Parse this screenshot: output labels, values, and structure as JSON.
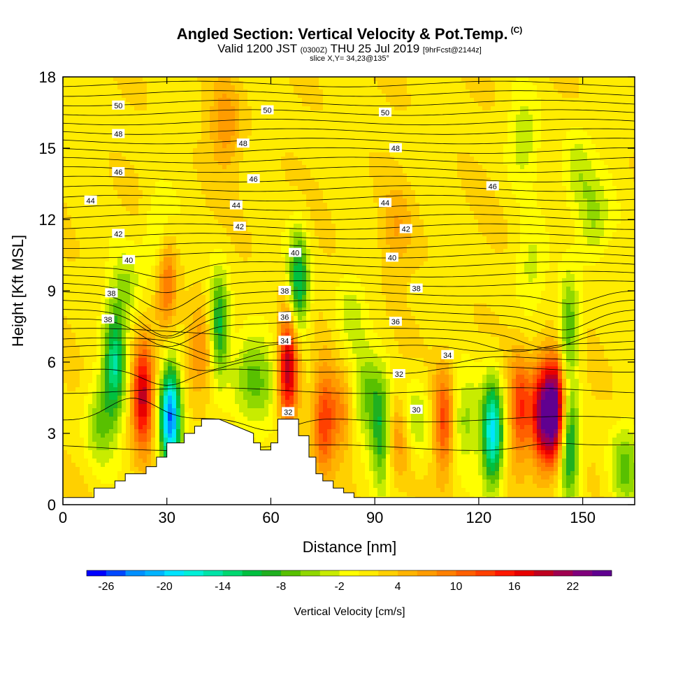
{
  "header": {
    "title": "Angled Section: Vertical Velocity & Pot.Temp.",
    "title_tag": "(C)",
    "valid_prefix": "Valid 1200 JST",
    "valid_zulu": "(0300Z)",
    "valid_date": "THU 25 Jul 2019",
    "valid_fcst": "[9hrFcst@2144z]",
    "slice": "slice X,Y= 34,23@135°"
  },
  "chart_data": {
    "type": "heatmap",
    "title": "Angled Section: Vertical Velocity & Pot.Temp.",
    "xlabel": "Distance [nm]",
    "ylabel": "Height [Kft MSL]",
    "xlim": [
      0,
      165
    ],
    "ylim": [
      0,
      18
    ],
    "x_ticks": [
      0,
      30,
      60,
      90,
      120,
      150
    ],
    "y_ticks": [
      0,
      3,
      6,
      9,
      12,
      15,
      18
    ],
    "colorbar": {
      "label": "Vertical Velocity [cm/s]",
      "tick_labels": [
        "-26",
        "-20",
        "-14",
        "-8",
        "-2",
        "4",
        "10",
        "16",
        "22"
      ],
      "range": [
        -28,
        26
      ],
      "bins": 27,
      "colors": [
        "#0000ff",
        "#0048ff",
        "#0090ff",
        "#00b4ff",
        "#00e4ff",
        "#00f0d8",
        "#00e4a8",
        "#00d870",
        "#00c040",
        "#20b020",
        "#58c000",
        "#90d800",
        "#c8ec00",
        "#ffff00",
        "#ffec00",
        "#ffd000",
        "#ffb400",
        "#ff9c00",
        "#ff8000",
        "#ff6000",
        "#ff4000",
        "#ff1800",
        "#e80000",
        "#c00020",
        "#a00050",
        "#80007c",
        "#600090"
      ]
    },
    "velocity_features": [
      {
        "x": 11,
        "z": 3.5,
        "w": -8
      },
      {
        "x": 15,
        "z": 6.0,
        "w": -14
      },
      {
        "x": 18,
        "z": 9.0,
        "w": -6
      },
      {
        "x": 23,
        "z": 4.5,
        "w": 18
      },
      {
        "x": 31,
        "z": 3.7,
        "w": -26
      },
      {
        "x": 30,
        "z": 9.5,
        "w": 10
      },
      {
        "x": 28,
        "z": 11.2,
        "w": -6
      },
      {
        "x": 40,
        "z": 6.5,
        "w": 8
      },
      {
        "x": 45,
        "z": 7.5,
        "w": -14
      },
      {
        "x": 47,
        "z": 16.0,
        "w": 6
      },
      {
        "x": 53,
        "z": 5.5,
        "w": -7
      },
      {
        "x": 58,
        "z": 5.0,
        "w": -6
      },
      {
        "x": 65,
        "z": 5.8,
        "w": 20
      },
      {
        "x": 68,
        "z": 9.3,
        "w": -14
      },
      {
        "x": 75,
        "z": 3.5,
        "w": 10
      },
      {
        "x": 80,
        "z": 3.8,
        "w": 7
      },
      {
        "x": 87,
        "z": 4.5,
        "w": -8
      },
      {
        "x": 92,
        "z": 3.0,
        "w": -12
      },
      {
        "x": 97,
        "z": 3.0,
        "w": 9
      },
      {
        "x": 101,
        "z": 3.5,
        "w": -8
      },
      {
        "x": 110,
        "z": 3.5,
        "w": 12
      },
      {
        "x": 96,
        "z": 11.5,
        "w": 4
      },
      {
        "x": 116,
        "z": 3.5,
        "w": -6
      },
      {
        "x": 124,
        "z": 3.0,
        "w": -20
      },
      {
        "x": 132,
        "z": 4.0,
        "w": 12
      },
      {
        "x": 138,
        "z": 3.8,
        "w": 18
      },
      {
        "x": 142,
        "z": 4.0,
        "w": 26
      },
      {
        "x": 146,
        "z": 2.5,
        "w": -14
      },
      {
        "x": 146,
        "z": 7.5,
        "w": -10
      },
      {
        "x": 153,
        "z": 12.0,
        "w": -6
      },
      {
        "x": 162,
        "z": 1.5,
        "w": -8
      },
      {
        "x": 133,
        "z": 15.5,
        "w": -5
      },
      {
        "x": 148,
        "z": 14.0,
        "w": -5
      },
      {
        "x": 135,
        "z": 10.0,
        "w": -4
      },
      {
        "x": 83,
        "z": 8.0,
        "w": -4
      }
    ],
    "terrain": {
      "x": [
        0,
        9,
        9,
        15,
        15,
        18,
        18,
        24,
        24,
        27,
        27,
        30,
        30,
        35,
        35,
        38,
        38,
        40,
        40,
        45,
        45,
        50,
        50,
        55,
        55,
        57,
        57,
        60,
        60,
        62,
        62,
        65,
        65,
        68,
        68,
        71,
        71,
        73,
        73,
        75,
        75,
        78,
        78,
        81,
        81,
        84,
        84,
        87,
        87,
        165
      ],
      "z": [
        0.3,
        0.3,
        0.7,
        0.7,
        1.0,
        1.0,
        1.3,
        1.3,
        1.6,
        1.6,
        2.0,
        2.0,
        2.6,
        2.6,
        3.0,
        3.0,
        3.3,
        3.3,
        3.6,
        3.6,
        3.6,
        3.3,
        3.3,
        3.0,
        2.6,
        2.6,
        2.3,
        2.3,
        2.6,
        2.6,
        3.6,
        3.6,
        3.6,
        3.6,
        2.9,
        2.9,
        2.0,
        2.0,
        1.3,
        1.3,
        1.0,
        1.0,
        0.7,
        0.7,
        0.5,
        0.5,
        0.3,
        0.3,
        0.3,
        0.3
      ]
    },
    "theta_contour_labels": [
      {
        "v": "50",
        "x": 16,
        "z": 16.8
      },
      {
        "v": "50",
        "x": 59,
        "z": 16.6
      },
      {
        "v": "50",
        "x": 93,
        "z": 16.5
      },
      {
        "v": "48",
        "x": 16,
        "z": 15.6
      },
      {
        "v": "48",
        "x": 52,
        "z": 15.2
      },
      {
        "v": "48",
        "x": 96,
        "z": 15.0
      },
      {
        "v": "46",
        "x": 16,
        "z": 14.0
      },
      {
        "v": "46",
        "x": 55,
        "z": 13.7
      },
      {
        "v": "46",
        "x": 124,
        "z": 13.4
      },
      {
        "v": "44",
        "x": 8,
        "z": 12.8
      },
      {
        "v": "44",
        "x": 50,
        "z": 12.6
      },
      {
        "v": "44",
        "x": 93,
        "z": 12.7
      },
      {
        "v": "42",
        "x": 16,
        "z": 11.4
      },
      {
        "v": "42",
        "x": 51,
        "z": 11.7
      },
      {
        "v": "42",
        "x": 99,
        "z": 11.6
      },
      {
        "v": "40",
        "x": 19,
        "z": 10.3
      },
      {
        "v": "40",
        "x": 67,
        "z": 10.6
      },
      {
        "v": "40",
        "x": 95,
        "z": 10.4
      },
      {
        "v": "38",
        "x": 14,
        "z": 8.9
      },
      {
        "v": "38",
        "x": 64,
        "z": 9.0
      },
      {
        "v": "38",
        "x": 102,
        "z": 9.1
      },
      {
        "v": "38",
        "x": 13,
        "z": 7.8
      },
      {
        "v": "36",
        "x": 64,
        "z": 7.9
      },
      {
        "v": "36",
        "x": 96,
        "z": 7.7
      },
      {
        "v": "34",
        "x": 64,
        "z": 6.9
      },
      {
        "v": "34",
        "x": 111,
        "z": 6.3
      },
      {
        "v": "32",
        "x": 65,
        "z": 3.9
      },
      {
        "v": "32",
        "x": 97,
        "z": 5.5
      },
      {
        "v": "30",
        "x": 102,
        "z": 4.0
      }
    ],
    "theta_lines": [
      {
        "z0": 2.4,
        "dips": [
          [
            45,
            0.0
          ],
          [
            140,
            -0.2
          ]
        ]
      },
      {
        "z0": 3.6,
        "dips": [
          [
            20,
            -1.0
          ],
          [
            60,
            0.6
          ]
        ]
      },
      {
        "z0": 4.8,
        "dips": [
          [
            40,
            0.0
          ]
        ]
      },
      {
        "z0": 5.7,
        "dips": [
          [
            30,
            0.8
          ],
          [
            100,
            0.2
          ]
        ]
      },
      {
        "z0": 6.2,
        "dips": [
          [
            40,
            0.6
          ],
          [
            110,
            0.4
          ]
        ]
      },
      {
        "z0": 6.6,
        "dips": [
          [
            45,
            0.6
          ],
          [
            120,
            0.2
          ]
        ]
      },
      {
        "z0": 6.9,
        "dips": [
          [
            45,
            0.6
          ],
          [
            130,
            0.4
          ]
        ]
      },
      {
        "z0": 7.3,
        "dips": [
          [
            60,
            0.4
          ],
          [
            140,
            0.6
          ]
        ]
      },
      {
        "z0": 7.7,
        "dips": [
          [
            30,
            1.0
          ],
          [
            145,
            0.6
          ]
        ]
      },
      {
        "z0": 8.1,
        "dips": [
          [
            30,
            1.0
          ],
          [
            145,
            0.7
          ]
        ]
      },
      {
        "z0": 8.5,
        "dips": [
          [
            30,
            1.3
          ],
          [
            145,
            0.6
          ]
        ]
      },
      {
        "z0": 8.9,
        "dips": [
          [
            30,
            1.3
          ],
          [
            147,
            0.5
          ]
        ]
      },
      {
        "z0": 9.3,
        "dips": [
          [
            30,
            1.0
          ]
        ]
      },
      {
        "z0": 9.7,
        "dips": [
          [
            30,
            0.7
          ]
        ]
      },
      {
        "z0": 10.1,
        "dips": [
          [
            30,
            0.5
          ]
        ]
      },
      {
        "z0": 10.5,
        "dips": []
      },
      {
        "z0": 10.9,
        "dips": []
      },
      {
        "z0": 11.3,
        "dips": []
      },
      {
        "z0": 11.7,
        "dips": []
      },
      {
        "z0": 12.1,
        "dips": []
      },
      {
        "z0": 12.5,
        "dips": []
      },
      {
        "z0": 12.9,
        "dips": []
      },
      {
        "z0": 13.3,
        "dips": []
      },
      {
        "z0": 13.7,
        "dips": []
      },
      {
        "z0": 14.1,
        "dips": []
      },
      {
        "z0": 14.5,
        "dips": []
      },
      {
        "z0": 14.9,
        "dips": []
      },
      {
        "z0": 15.3,
        "dips": []
      },
      {
        "z0": 15.7,
        "dips": []
      },
      {
        "z0": 16.1,
        "dips": []
      },
      {
        "z0": 16.5,
        "dips": []
      },
      {
        "z0": 16.9,
        "dips": []
      },
      {
        "z0": 17.3,
        "dips": []
      },
      {
        "z0": 17.7,
        "dips": []
      }
    ]
  }
}
